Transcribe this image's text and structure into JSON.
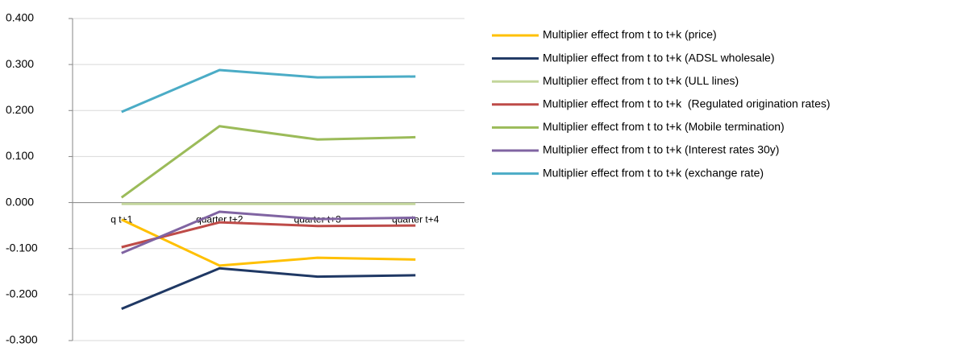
{
  "chart_data": {
    "type": "line",
    "categories": [
      "q t+1",
      "quarter t+2",
      "quarter t+3",
      "quarter t+4"
    ],
    "series": [
      {
        "name": "Multiplier effect from t to t+k (price)",
        "color": "#ffc000",
        "values": [
          -0.037,
          -0.137,
          -0.12,
          -0.124
        ]
      },
      {
        "name": "Multiplier effect from t to t+k (ADSL wholesale)",
        "color": "#1f3864",
        "values": [
          -0.231,
          -0.143,
          -0.161,
          -0.158
        ]
      },
      {
        "name": "Multiplier effect from t to t+k (ULL lines)",
        "color": "#c3d69b",
        "values": [
          -0.003,
          -0.003,
          -0.003,
          -0.003
        ]
      },
      {
        "name": "Multiplier effect from t to t+k  (Regulated origination rates)",
        "color": "#be4b48",
        "values": [
          -0.097,
          -0.043,
          -0.051,
          -0.05
        ]
      },
      {
        "name": "Multiplier effect from t to t+k (Mobile termination)",
        "color": "#9bbb59",
        "values": [
          0.011,
          0.166,
          0.137,
          0.142
        ]
      },
      {
        "name": "Multiplier effect from t to t+k (Interest rates 30y)",
        "color": "#8064a2",
        "values": [
          -0.11,
          -0.02,
          -0.036,
          -0.033
        ]
      },
      {
        "name": "Multiplier effect from t to t+k (exchange rate)",
        "color": "#4bacc6",
        "values": [
          0.197,
          0.288,
          0.272,
          0.274
        ]
      }
    ],
    "ylim": [
      -0.3,
      0.4
    ],
    "yticks": [
      {
        "value": 0.4,
        "label": "0.400"
      },
      {
        "value": 0.3,
        "label": "0.300"
      },
      {
        "value": 0.2,
        "label": "0.200"
      },
      {
        "value": 0.1,
        "label": "0.100"
      },
      {
        "value": 0,
        "label": "0.000"
      },
      {
        "value": -0.1,
        "label": "-0.100"
      },
      {
        "value": -0.2,
        "label": "-0.200"
      },
      {
        "value": -0.3,
        "label": "-0.300"
      }
    ],
    "grid": true,
    "legend": "right"
  }
}
